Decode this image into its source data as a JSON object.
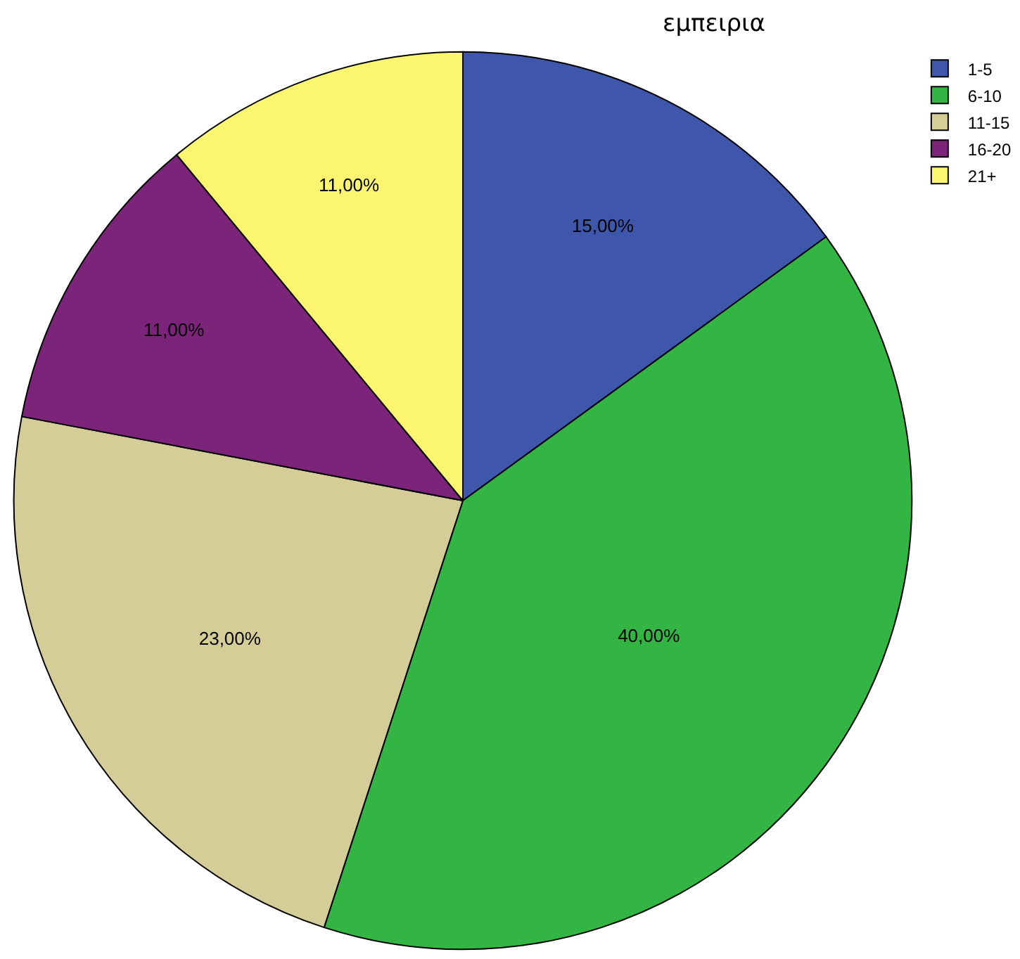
{
  "chart_data": {
    "type": "pie",
    "title": "εμπειρια",
    "categories": [
      "1-5",
      "6-10",
      "11-15",
      "16-20",
      "21+"
    ],
    "values": [
      15,
      40,
      23,
      11,
      11
    ],
    "value_labels": [
      "15,00%",
      "40,00%",
      "23,00%",
      "11,00%",
      "11,00%"
    ],
    "colors": [
      "#3f57ab",
      "#33b544",
      "#d5cd98",
      "#7b2479",
      "#fbf570"
    ],
    "legend": "top right"
  }
}
